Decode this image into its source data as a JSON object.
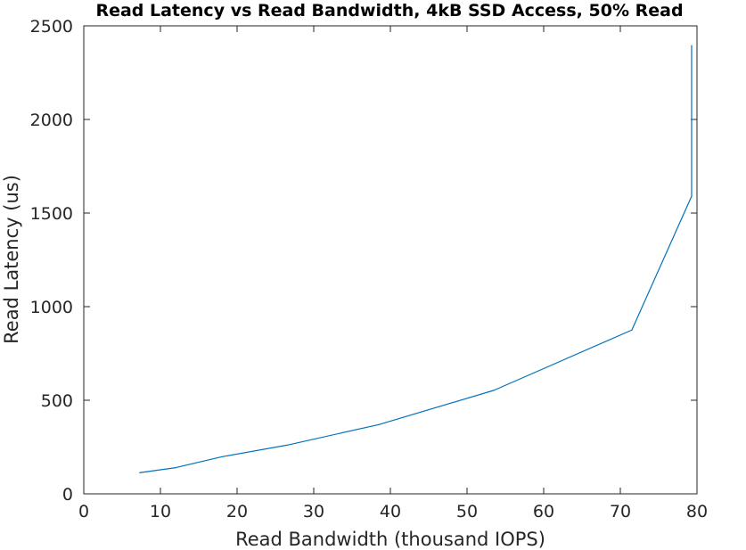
{
  "chart_data": {
    "type": "line",
    "title": "Read Latency vs Read Bandwidth, 4kB SSD Access, 50% Read",
    "xlabel": "Read Bandwidth (thousand IOPS)",
    "ylabel": "Read Latency (us)",
    "xlim": [
      0,
      80
    ],
    "ylim": [
      0,
      2500
    ],
    "xticks": [
      0,
      10,
      20,
      30,
      40,
      50,
      60,
      70,
      80
    ],
    "yticks": [
      0,
      500,
      1000,
      1500,
      2000,
      2500
    ],
    "grid": false,
    "series": [
      {
        "color": "#0072BD",
        "x": [
          7.3,
          12.0,
          18.0,
          26.5,
          38.5,
          53.5,
          71.5,
          79.3,
          79.3
        ],
        "y": [
          113,
          140,
          198,
          260,
          370,
          553,
          875,
          1590,
          2395
        ]
      }
    ]
  }
}
